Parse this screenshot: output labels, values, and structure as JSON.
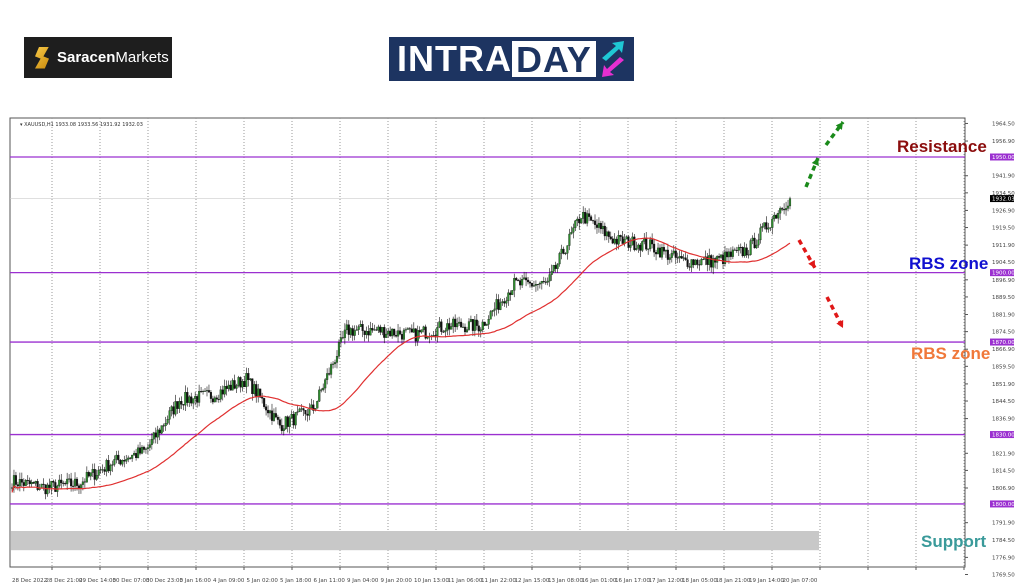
{
  "logos": {
    "broker": {
      "bold": "Saracen",
      "rest": "Markets"
    },
    "brand": {
      "part1": "INTRA",
      "part2": "DAY"
    }
  },
  "chart_data": {
    "type": "candlestick",
    "symbol_header": "XAUUSD,H1  1933.08 1933.56 1931.92 1932.03",
    "ylim": [
      1769.5,
      1964.5
    ],
    "y_ticks": [
      1964.5,
      1956.9,
      1941.9,
      1934.5,
      1926.9,
      1919.5,
      1911.9,
      1904.5,
      1896.9,
      1889.5,
      1881.9,
      1874.5,
      1866.9,
      1859.5,
      1851.9,
      1844.5,
      1836.9,
      1821.9,
      1814.5,
      1806.9,
      1791.9,
      1784.5,
      1776.9,
      1769.5
    ],
    "x_ticks": [
      "28 Dec 2022",
      "28 Dec 21:00",
      "29 Dec 14:00",
      "30 Dec 07:00",
      "30 Dec 23:00",
      "3 Jan 16:00",
      "4 Jan 09:00",
      "5 Jan 02:00",
      "5 Jan 18:00",
      "6 Jan 11:00",
      "9 Jan 04:00",
      "9 Jan 20:00",
      "10 Jan 13:00",
      "11 Jan 06:00",
      "11 Jan 22:00",
      "12 Jan 15:00",
      "13 Jan 08:00",
      "16 Jan 01:00",
      "16 Jan 17:00",
      "17 Jan 12:00",
      "18 Jan 05:00",
      "18 Jan 21:00",
      "19 Jan 14:00",
      "20 Jan 07:00"
    ],
    "approx_close_at_x_ticks": [
      1810,
      1807,
      1809,
      1818,
      1823,
      1845,
      1847,
      1854,
      1834,
      1841,
      1875,
      1875,
      1873,
      1877,
      1877,
      1895,
      1895,
      1925,
      1914,
      1912,
      1905,
      1905,
      1910,
      1929
    ],
    "last_close": 1932.03,
    "moving_average": {
      "color": "#e03030"
    },
    "levels": [
      {
        "price": 1950.0,
        "label": "1950.00"
      },
      {
        "price": 1900.0,
        "label": "1900.00"
      },
      {
        "price": 1870.0,
        "label": "1870.00"
      },
      {
        "price": 1830.0,
        "label": "1830.00"
      },
      {
        "price": 1800.0,
        "label": "1800.00"
      }
    ],
    "level_color": "#9b30d0",
    "support_band": [
      1780.0,
      1788.3
    ],
    "annotations": [
      {
        "text": "Resistance",
        "color": "#8b0d0d"
      },
      {
        "text": "RBS zone",
        "color": "#1010d0"
      },
      {
        "text": "RBS zone",
        "color": "#f0783a"
      },
      {
        "text": "Support",
        "color": "#3a9a9a"
      }
    ],
    "arrows": {
      "up_color": "#1a8a1a",
      "down_color": "#e01818"
    }
  }
}
